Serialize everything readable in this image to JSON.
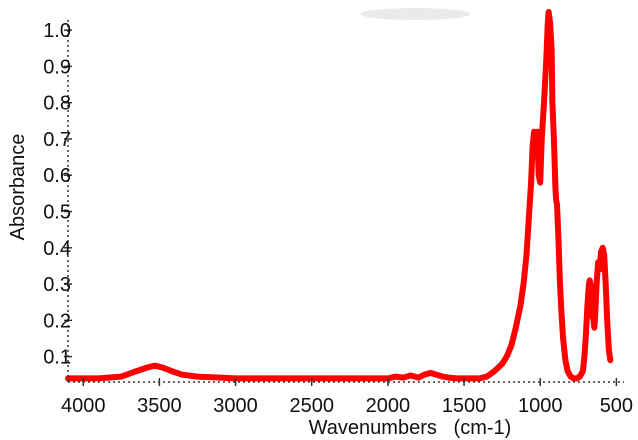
{
  "chart_data": {
    "type": "line",
    "title": "",
    "xlabel": "Wavenumbers   (cm-1)",
    "ylabel": "Absorbance",
    "xlim": [
      4100,
      450
    ],
    "ylim": [
      0.03,
      1.05
    ],
    "x_reversed": true,
    "grid": false,
    "x_ticks": [
      4000,
      3500,
      3000,
      2500,
      2000,
      1500,
      1000,
      500
    ],
    "x_tick_labels": [
      "4000",
      "3500",
      "3000",
      "2500",
      "2000",
      "1500",
      "1000",
      "500"
    ],
    "y_ticks": [
      0.1,
      0.2,
      0.3,
      0.4,
      0.5,
      0.6,
      0.7,
      0.8,
      0.9,
      1.0
    ],
    "y_tick_labels": [
      "0.1",
      "0.2",
      "0.3",
      "0.4",
      "0.5",
      "0.6",
      "0.7",
      "0.8",
      "0.9",
      "1.0"
    ],
    "series": [
      {
        "color": "#ff0000",
        "x": [
          4100,
          3900,
          3750,
          3650,
          3580,
          3530,
          3480,
          3420,
          3350,
          3250,
          3100,
          3000,
          2500,
          2000,
          1950,
          1900,
          1850,
          1800,
          1760,
          1720,
          1680,
          1640,
          1600,
          1550,
          1500,
          1450,
          1400,
          1350,
          1300,
          1250,
          1220,
          1190,
          1160,
          1130,
          1110,
          1090,
          1075,
          1060,
          1050,
          1040,
          1030,
          1020,
          1010,
          1000,
          990,
          975,
          960,
          950,
          945,
          935,
          925,
          920,
          910,
          900,
          895,
          890,
          880,
          870,
          860,
          850,
          835,
          820,
          800,
          780,
          760,
          740,
          720,
          710,
          700,
          690,
          680,
          675,
          670,
          665,
          660,
          650,
          645,
          640,
          630,
          620,
          610,
          605,
          600,
          590,
          580,
          570,
          560,
          550,
          540
        ],
        "y": [
          0.04,
          0.04,
          0.045,
          0.06,
          0.07,
          0.075,
          0.07,
          0.06,
          0.05,
          0.045,
          0.042,
          0.04,
          0.04,
          0.04,
          0.045,
          0.042,
          0.048,
          0.042,
          0.05,
          0.055,
          0.05,
          0.045,
          0.042,
          0.04,
          0.04,
          0.04,
          0.04,
          0.045,
          0.06,
          0.08,
          0.1,
          0.13,
          0.18,
          0.24,
          0.3,
          0.38,
          0.48,
          0.58,
          0.68,
          0.72,
          0.68,
          0.72,
          0.6,
          0.58,
          0.7,
          0.8,
          0.92,
          1.02,
          1.05,
          1.02,
          0.95,
          0.8,
          0.7,
          0.56,
          0.53,
          0.52,
          0.42,
          0.3,
          0.22,
          0.15,
          0.09,
          0.06,
          0.045,
          0.04,
          0.04,
          0.045,
          0.06,
          0.1,
          0.16,
          0.24,
          0.3,
          0.31,
          0.3,
          0.26,
          0.22,
          0.2,
          0.18,
          0.21,
          0.3,
          0.36,
          0.34,
          0.37,
          0.39,
          0.4,
          0.38,
          0.3,
          0.2,
          0.12,
          0.09
        ]
      }
    ]
  }
}
